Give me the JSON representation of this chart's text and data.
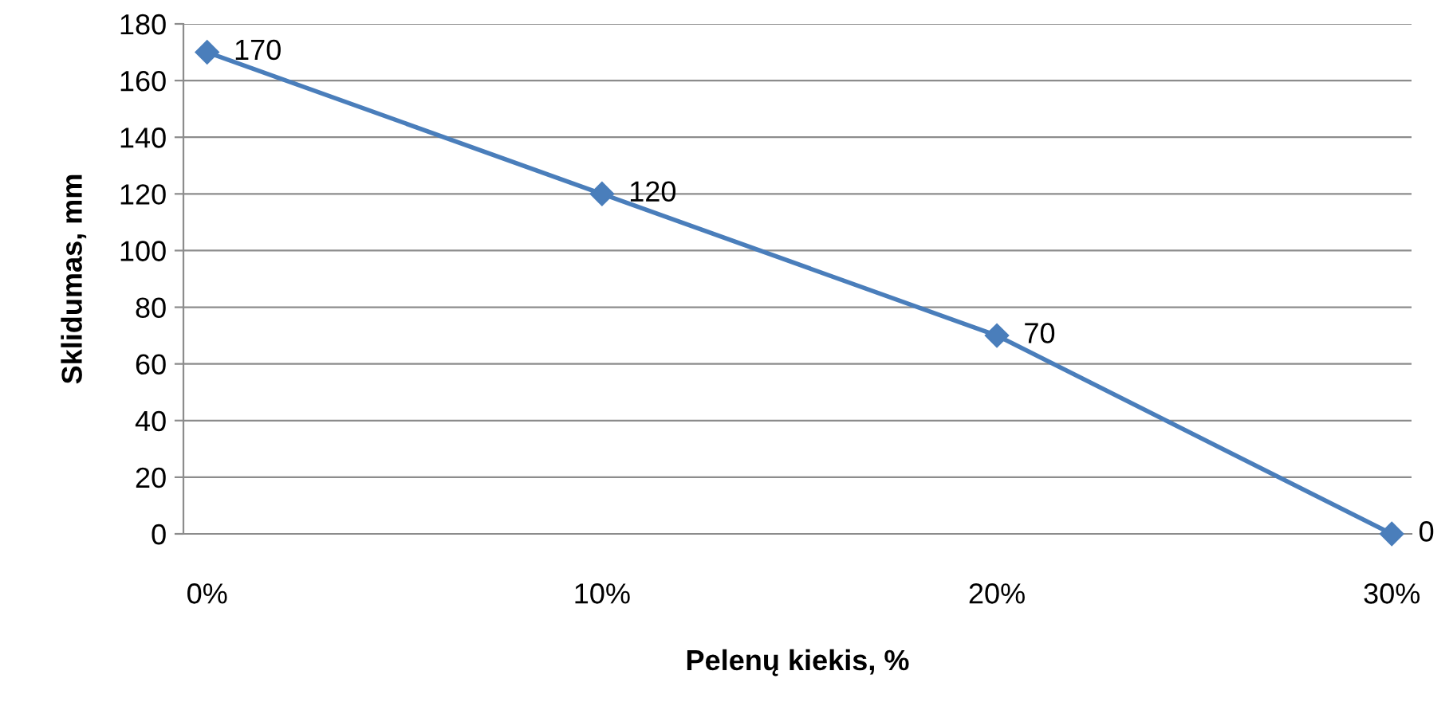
{
  "chart_data": {
    "type": "line",
    "xlabel": "Pelenų kiekis, %",
    "ylabel": "Sklidumas, mm",
    "categories": [
      "0%",
      "10%",
      "20%",
      "30%"
    ],
    "series": [
      {
        "color": "#4a7ebb",
        "values": [
          170,
          120,
          70,
          0
        ]
      }
    ],
    "ylim": [
      0,
      180
    ],
    "yticks": [
      0,
      20,
      40,
      60,
      80,
      100,
      120,
      140,
      160,
      180
    ],
    "grid": "y",
    "marker": "diamond",
    "line_style": "solid",
    "data_labels": true,
    "legend": false
  }
}
